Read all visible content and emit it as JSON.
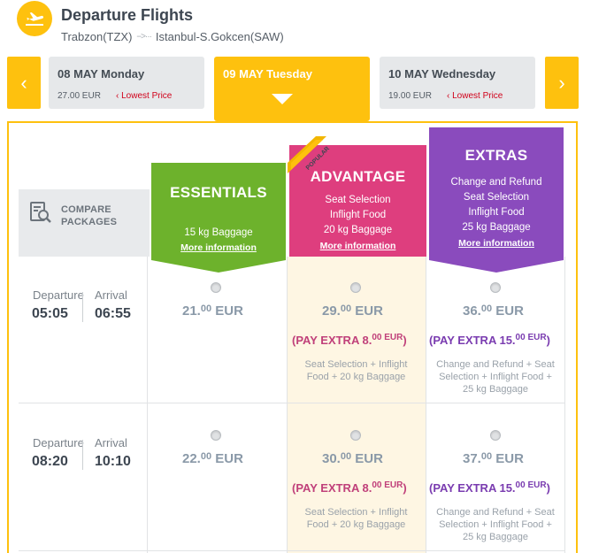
{
  "header": {
    "title": "Departure Flights",
    "origin": "Trabzon(TZX)",
    "route_arrow": "-->···",
    "destination": "Istanbul-S.Gokcen(SAW)"
  },
  "date_nav": {
    "prev_icon": "‹",
    "next_icon": "›"
  },
  "dates": [
    {
      "label": "08 MAY Monday",
      "price": "27.00 EUR",
      "lowest": "‹ Lowest Price"
    },
    {
      "label": "09 MAY Tuesday"
    },
    {
      "label": "10 MAY Wednesday",
      "price": "19.00 EUR",
      "lowest": "‹ Lowest Price"
    }
  ],
  "compare": {
    "line1": "COMPARE",
    "line2": "PACKAGES"
  },
  "packages": [
    {
      "name": "ESSENTIALS",
      "features": [
        "15 kg Baggage"
      ],
      "more": "More information",
      "color": "#6db22c"
    },
    {
      "name": "ADVANTAGE",
      "badge": "POPULAR",
      "features": [
        "Seat Selection",
        "Inflight Food",
        "20 kg Baggage"
      ],
      "more": "More information",
      "color": "#de3e7e"
    },
    {
      "name": "EXTRAS",
      "features": [
        "Change and Refund",
        "Seat Selection",
        "Inflight Food",
        "25 kg Baggage"
      ],
      "more": "More information",
      "color": "#8a4bbd"
    }
  ],
  "labels": {
    "departure": "Departure",
    "arrival": "Arrival"
  },
  "flights": [
    {
      "departure": "05:05",
      "arrival": "06:55",
      "fares": [
        {
          "main": "21.",
          "cents": "00",
          "cur": "EUR"
        },
        {
          "main": "29.",
          "cents": "00",
          "cur": "EUR",
          "extra_pre": "(PAY EXTRA 8.",
          "extra_sup": "00 EUR",
          "extra_post": ")",
          "incl1": "Seat Selection + Inflight",
          "incl2": "Food + 20 kg Baggage"
        },
        {
          "main": "36.",
          "cents": "00",
          "cur": "EUR",
          "extra_pre": "(PAY EXTRA 15.",
          "extra_sup": "00 EUR",
          "extra_post": ")",
          "incl1": "Change and Refund + Seat",
          "incl2": "Selection + Inflight Food +",
          "incl3": "25 kg Baggage"
        }
      ]
    },
    {
      "departure": "08:20",
      "arrival": "10:10",
      "fares": [
        {
          "main": "22.",
          "cents": "00",
          "cur": "EUR"
        },
        {
          "main": "30.",
          "cents": "00",
          "cur": "EUR",
          "extra_pre": "(PAY EXTRA 8.",
          "extra_sup": "00 EUR",
          "extra_post": ")",
          "incl1": "Seat Selection + Inflight",
          "incl2": "Food + 20 kg Baggage"
        },
        {
          "main": "37.",
          "cents": "00",
          "cur": "EUR",
          "extra_pre": "(PAY EXTRA 15.",
          "extra_sup": "00 EUR",
          "extra_post": ")",
          "incl1": "Change and Refund + Seat",
          "incl2": "Selection + Inflight Food +",
          "incl3": "25 kg Baggage"
        }
      ]
    }
  ],
  "colors": {
    "accent": "#fec10e",
    "advantage_extra": "#c0407a",
    "extras_extra": "#7a3cb0",
    "lowest_price": "#d0021b"
  }
}
